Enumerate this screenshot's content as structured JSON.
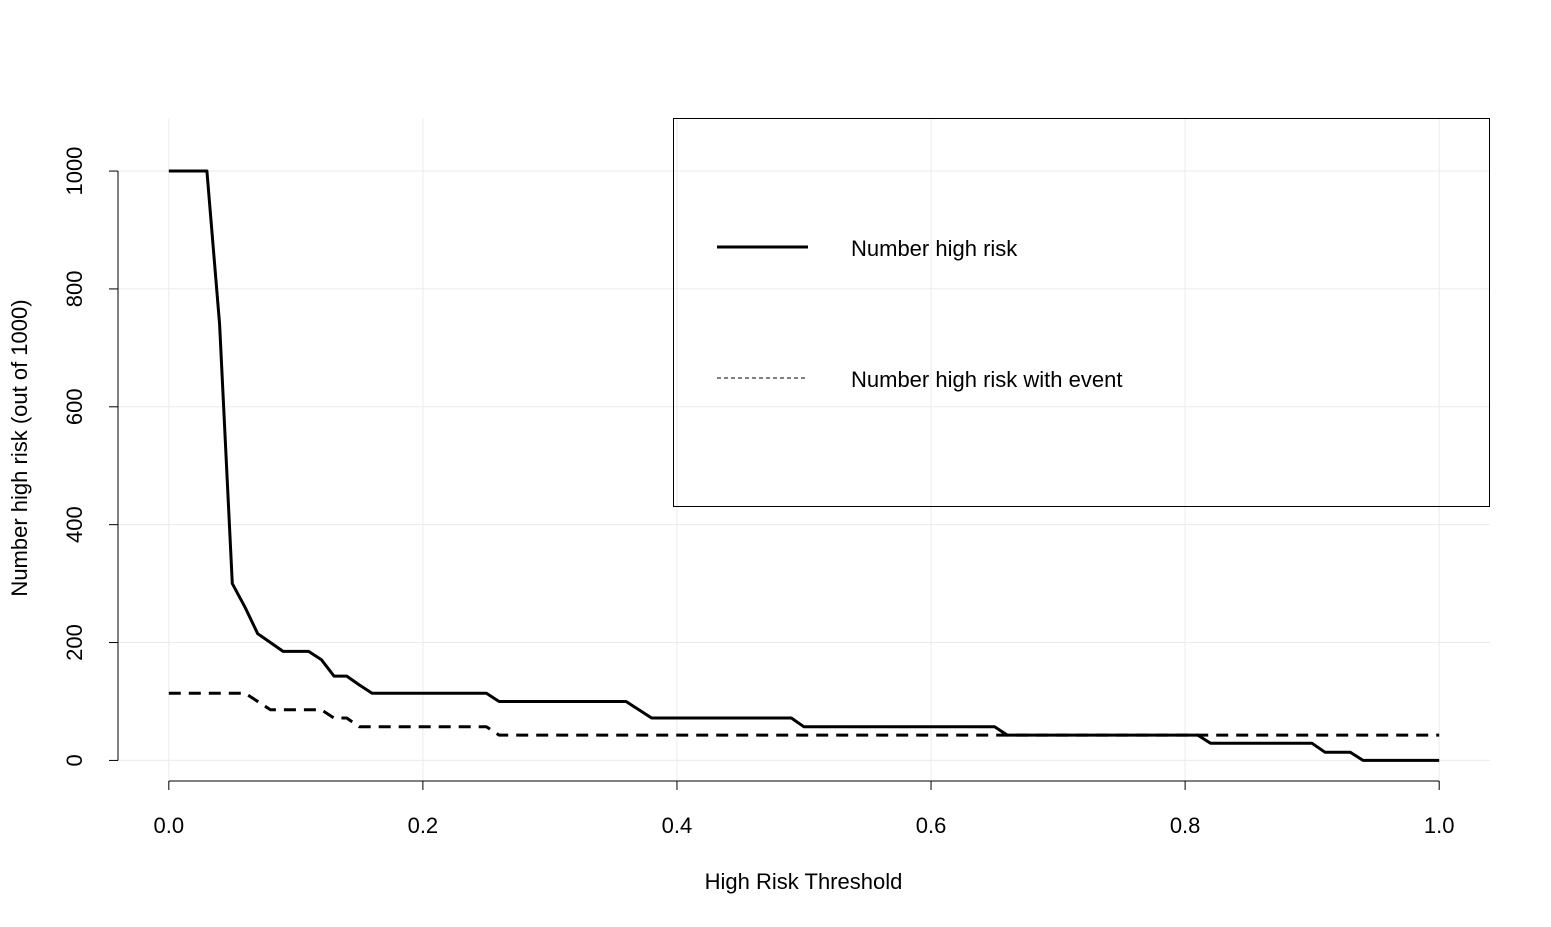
{
  "chart_data": {
    "type": "line",
    "xlabel": "High Risk Threshold",
    "ylabel": "Number high risk (out of 1000)",
    "xlim": [
      -0.04,
      1.04
    ],
    "ylim": [
      -40,
      1090
    ],
    "xticks": [
      0.0,
      0.2,
      0.4,
      0.6,
      0.8,
      1.0
    ],
    "xtick_labels": [
      "0.0",
      "0.2",
      "0.4",
      "0.6",
      "0.8",
      "1.0"
    ],
    "yticks": [
      0,
      200,
      400,
      600,
      800,
      1000
    ],
    "ytick_labels": [
      "0",
      "200",
      "400",
      "600",
      "800",
      "1000"
    ],
    "grid": true,
    "legend_position": "top-right",
    "series": [
      {
        "name": "Number high risk",
        "line_style": "solid",
        "color": "#000000",
        "x": [
          0.0,
          0.03,
          0.04,
          0.05,
          0.06,
          0.07,
          0.08,
          0.09,
          0.1,
          0.11,
          0.12,
          0.13,
          0.14,
          0.15,
          0.16,
          0.25,
          0.26,
          0.36,
          0.38,
          0.49,
          0.5,
          0.65,
          0.66,
          0.81,
          0.82,
          0.9,
          0.91,
          0.93,
          0.94,
          1.0
        ],
        "y": [
          1000,
          1000,
          740,
          300,
          260,
          215,
          200,
          185,
          185,
          185,
          171,
          143,
          143,
          128,
          114,
          114,
          100,
          100,
          72,
          72,
          57,
          57,
          43,
          43,
          29,
          29,
          14,
          14,
          0,
          0
        ]
      },
      {
        "name": "Number high risk with event",
        "line_style": "dashed",
        "color": "#000000",
        "x": [
          0.0,
          0.06,
          0.08,
          0.09,
          0.12,
          0.13,
          0.14,
          0.15,
          0.25,
          0.26,
          0.65,
          0.66,
          1.0
        ],
        "y": [
          114,
          114,
          86,
          86,
          86,
          72,
          72,
          57,
          57,
          43,
          43,
          43,
          43
        ]
      }
    ]
  }
}
